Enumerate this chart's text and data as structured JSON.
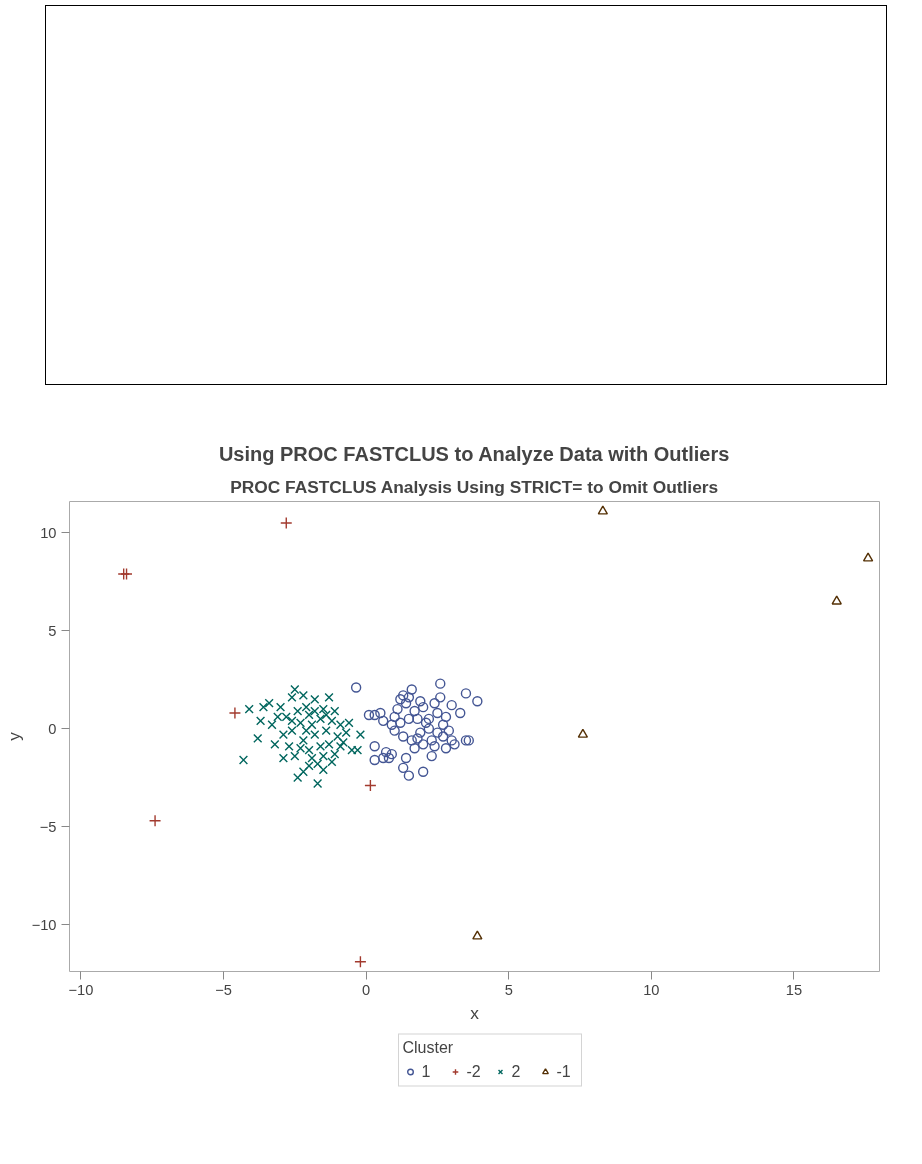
{
  "chart_data": {
    "type": "scatter",
    "title": "Using PROC FASTCLUS to Analyze Data with Outliers",
    "subtitle": "PROC FASTCLUS Analysis Using STRICT= to Omit Outliers",
    "xlabel": "x",
    "ylabel": "y",
    "legend_title": "Cluster",
    "legend": "bottom",
    "grid": false,
    "xlim": [
      -10.4,
      18.0
    ],
    "ylim": [
      -12.4,
      11.6
    ],
    "xticks": [
      -10,
      -5,
      0,
      5,
      10,
      15
    ],
    "yticks": [
      -10,
      -5,
      0,
      5,
      10
    ],
    "series": [
      {
        "name": "1",
        "color": "#445694",
        "marker": "circle",
        "x": [
          -0.35,
          0.3,
          0.1,
          0.5,
          0.3,
          0.3,
          0.6,
          0.7,
          0.8,
          0.9,
          1.0,
          1.0,
          1.2,
          1.3,
          1.4,
          1.5,
          1.6,
          1.2,
          1.3,
          1.4,
          1.5,
          1.6,
          1.7,
          1.8,
          1.9,
          2.0,
          2.0,
          2.1,
          2.2,
          2.3,
          2.3,
          2.4,
          2.5,
          2.6,
          2.6,
          2.7,
          2.7,
          2.8,
          2.9,
          3.0,
          3.0,
          3.1,
          3.3,
          3.5,
          3.5,
          3.6,
          3.9,
          1.1,
          0.9,
          1.7,
          2.2,
          1.9,
          2.5,
          1.5,
          2.8,
          0.6,
          1.3,
          2.0,
          2.4,
          1.8
        ],
        "values": [
          2.1,
          0.7,
          0.7,
          0.8,
          -0.9,
          -1.6,
          0.4,
          -1.2,
          -1.5,
          -1.3,
          0.6,
          -0.1,
          1.5,
          1.7,
          1.3,
          1.6,
          2.0,
          0.3,
          -0.4,
          -1.5,
          -2.4,
          -0.6,
          0.9,
          0.5,
          -0.2,
          1.1,
          -2.2,
          0.3,
          0.5,
          -0.6,
          -1.4,
          -0.9,
          0.8,
          1.6,
          2.3,
          0.2,
          -0.4,
          0.6,
          -0.1,
          1.2,
          -0.6,
          -0.8,
          0.8,
          1.8,
          -0.6,
          -0.6,
          1.4,
          1.0,
          0.2,
          -1.0,
          0.0,
          1.4,
          -0.2,
          0.5,
          -1.0,
          -1.5,
          -2.0,
          -0.8,
          1.3,
          -0.5
        ]
      },
      {
        "name": "-2",
        "color": "#a23a2e",
        "marker": "cross",
        "x": [
          -8.5,
          -8.4,
          -2.8,
          -4.6,
          -7.4,
          0.15,
          -0.2
        ],
        "values": [
          7.9,
          7.9,
          10.5,
          0.8,
          -4.7,
          -2.9,
          -11.9
        ]
      },
      {
        "name": "2",
        "color": "#01665e",
        "marker": "x",
        "x": [
          -4.3,
          -4.1,
          -3.8,
          -3.7,
          -3.6,
          -3.4,
          -3.3,
          -3.2,
          -3.0,
          -2.9,
          -2.8,
          -2.6,
          -2.5,
          -2.5,
          -2.4,
          -2.3,
          -2.2,
          -2.2,
          -2.1,
          -2.0,
          -2.0,
          -1.9,
          -1.8,
          -1.8,
          -1.7,
          -1.7,
          -1.6,
          -1.5,
          -1.5,
          -1.4,
          -1.3,
          -1.3,
          -1.2,
          -1.1,
          -1.0,
          -0.9,
          -0.8,
          -0.7,
          -0.6,
          -0.5,
          -0.3,
          -0.2,
          -2.7,
          -2.6,
          -2.4,
          -2.3,
          -2.1,
          -1.9,
          -1.6,
          -1.4,
          -2.9,
          -3.1,
          -2.0,
          -1.2,
          -0.9,
          -1.8,
          -2.2,
          -1.5,
          -2.6,
          -1.1
        ],
        "values": [
          -1.6,
          1.0,
          -0.5,
          0.4,
          1.1,
          1.3,
          0.2,
          -0.8,
          1.1,
          -0.3,
          0.6,
          1.6,
          2.0,
          -1.4,
          -2.5,
          0.3,
          -0.6,
          -2.2,
          1.1,
          -1.1,
          0.7,
          0.2,
          -0.3,
          1.5,
          -1.8,
          -2.8,
          0.5,
          -1.4,
          1.0,
          -0.1,
          1.6,
          -0.8,
          0.4,
          -1.3,
          -0.4,
          0.2,
          -0.7,
          -0.2,
          0.3,
          -1.1,
          -1.1,
          -0.3,
          -0.9,
          -0.1,
          0.9,
          -1.0,
          -0.1,
          -1.5,
          -0.9,
          0.7,
          -1.5,
          0.6,
          -1.9,
          -1.7,
          -0.9,
          0.9,
          1.7,
          -2.1,
          0.4,
          0.9
        ]
      },
      {
        "name": "-1",
        "color": "#543005",
        "marker": "triangle",
        "x": [
          8.3,
          17.6,
          16.5,
          7.6,
          3.9
        ],
        "values": [
          11.1,
          8.7,
          6.5,
          -0.3,
          -10.6
        ]
      }
    ]
  }
}
